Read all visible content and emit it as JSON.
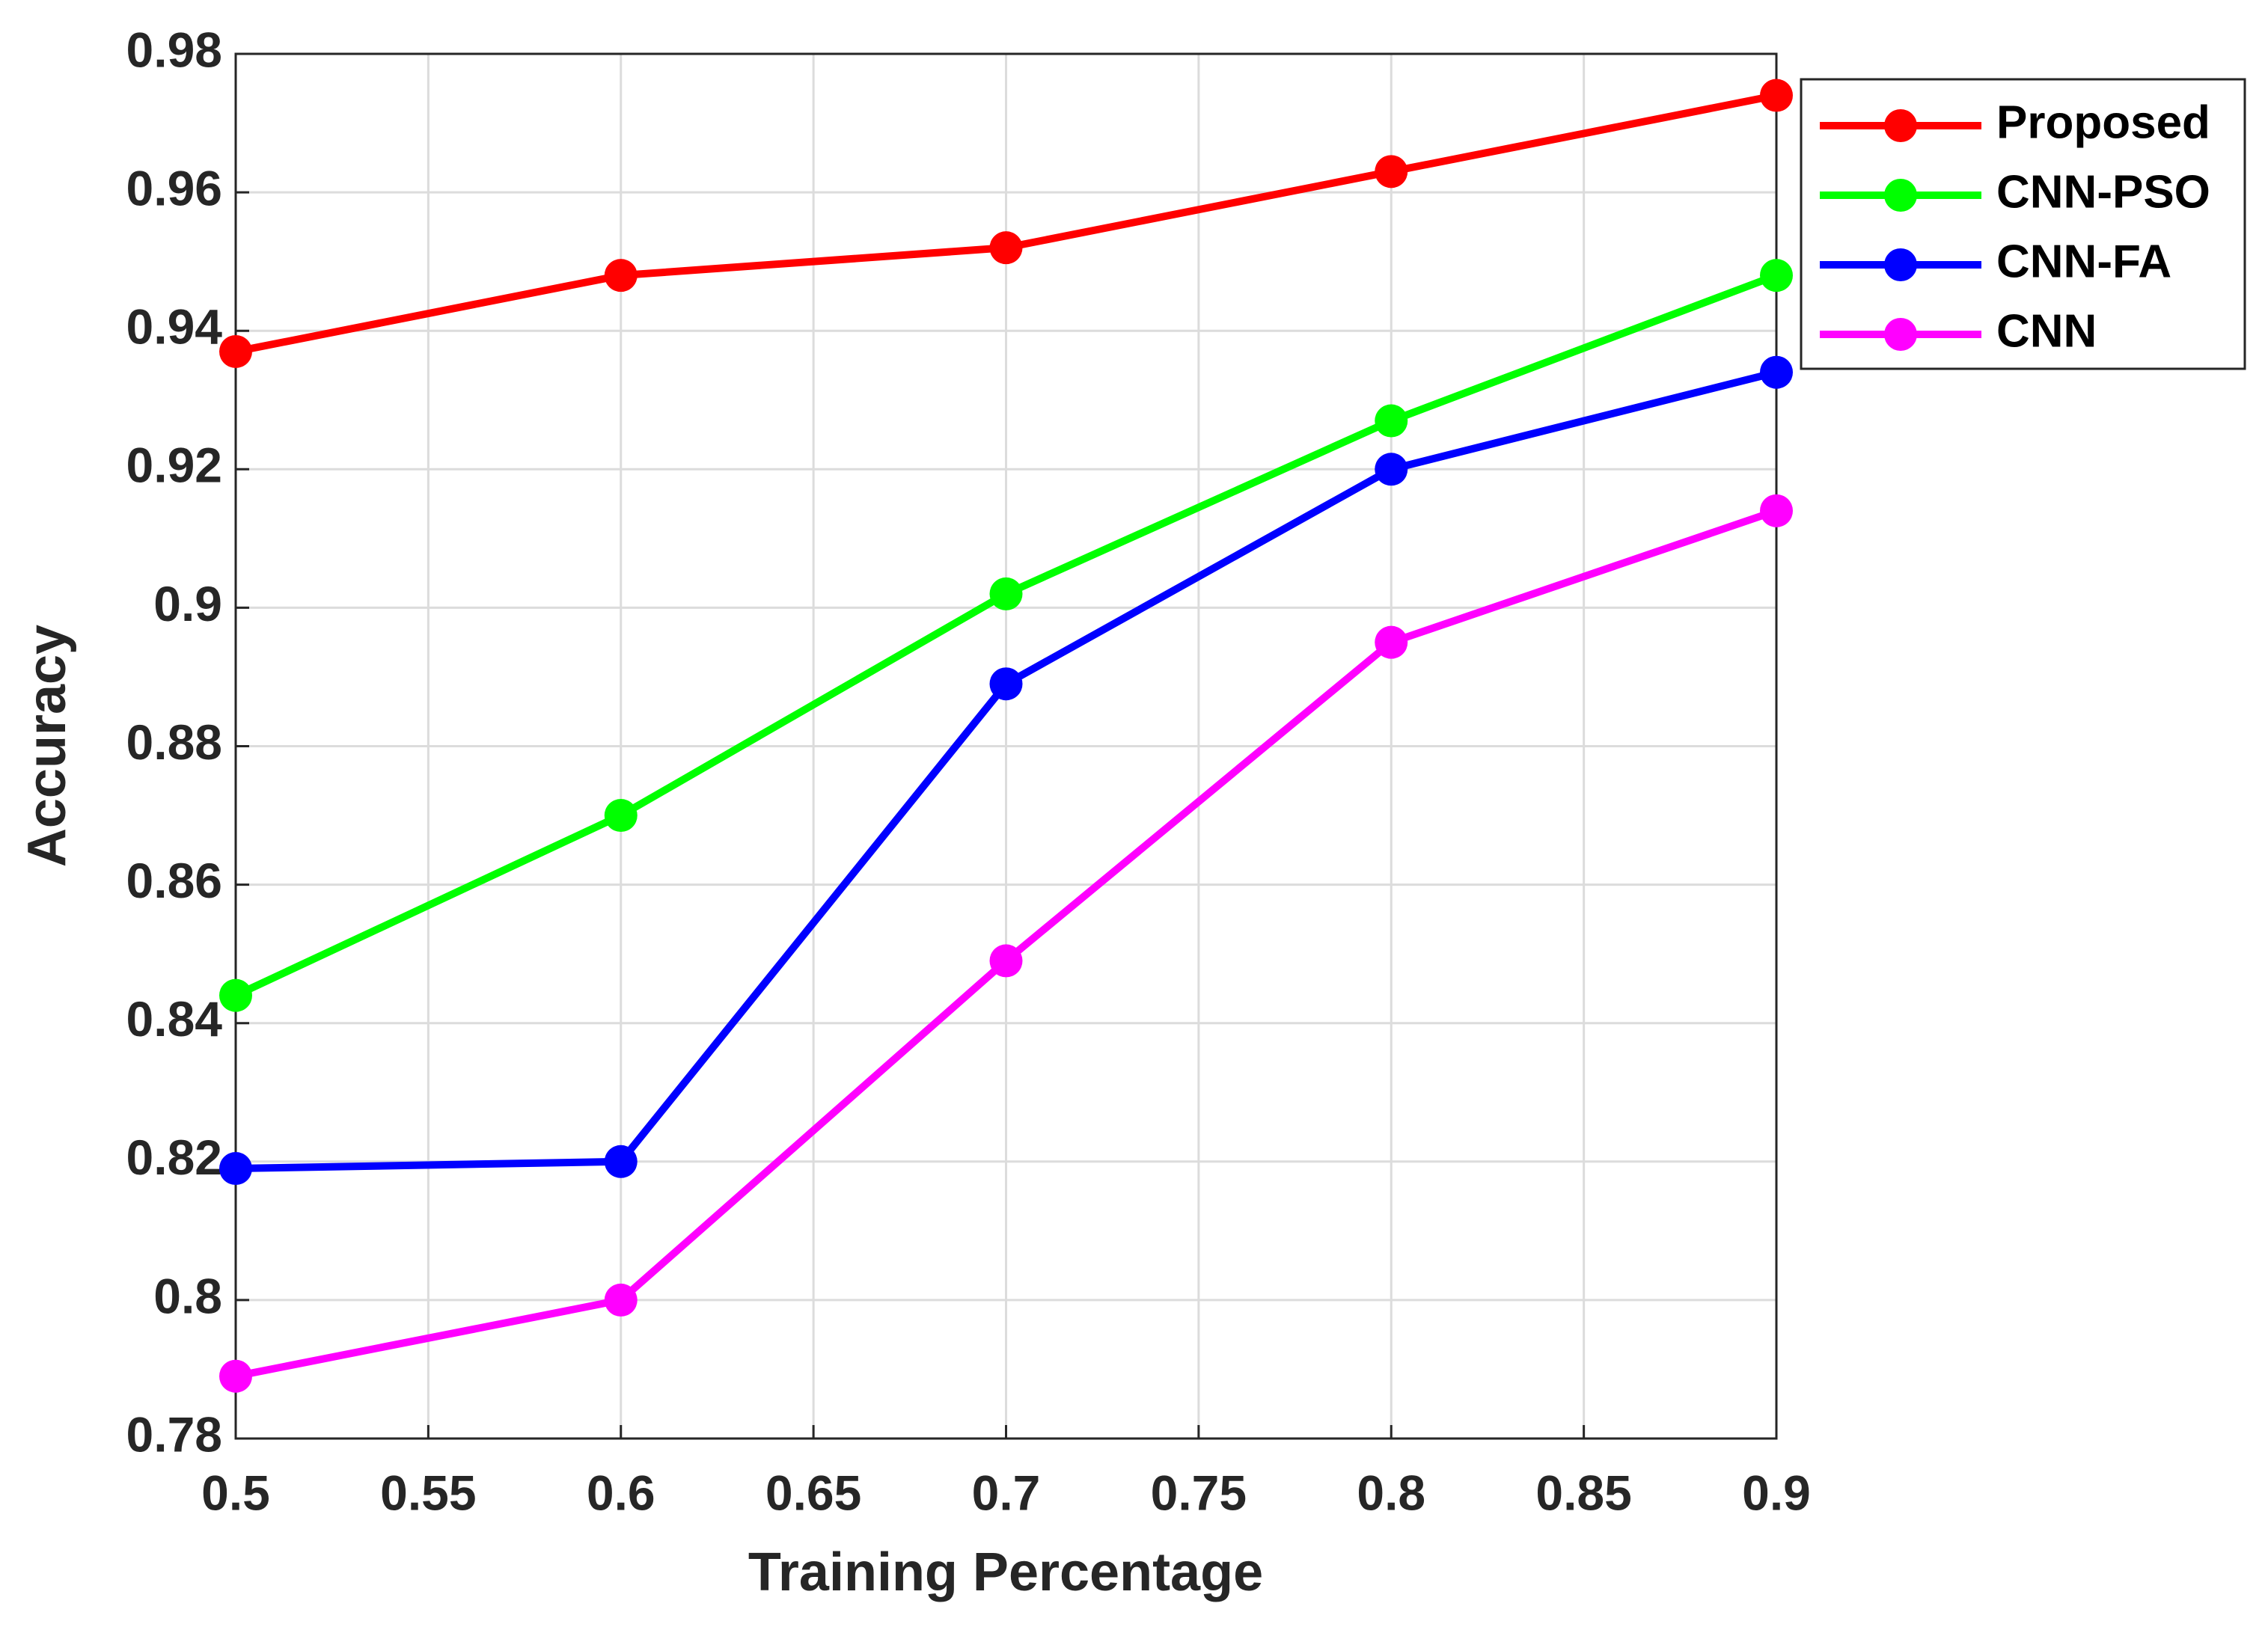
{
  "chart_data": {
    "type": "line",
    "x_label": "Training Percentage",
    "y_label": "Accuracy",
    "x": [
      0.5,
      0.6,
      0.7,
      0.8,
      0.9
    ],
    "xlim": [
      0.5,
      0.9
    ],
    "xticks": [
      0.5,
      0.55,
      0.6,
      0.65,
      0.7,
      0.75,
      0.8,
      0.85,
      0.9
    ],
    "ylim": [
      0.78,
      0.98
    ],
    "yticks": [
      0.78,
      0.8,
      0.82,
      0.84,
      0.86,
      0.88,
      0.9,
      0.92,
      0.94,
      0.96,
      0.98
    ],
    "grid": true,
    "legend": "outside-upper-right",
    "series": [
      {
        "name": "Proposed",
        "color": "#ff0000",
        "values": [
          0.937,
          0.948,
          0.952,
          0.963,
          0.974
        ]
      },
      {
        "name": "CNN-PSO",
        "color": "#00ff00",
        "values": [
          0.844,
          0.87,
          0.902,
          0.927,
          0.948
        ]
      },
      {
        "name": "CNN-FA",
        "color": "#0000ff",
        "values": [
          0.819,
          0.82,
          0.889,
          0.92,
          0.934
        ]
      },
      {
        "name": "CNN",
        "color": "#ff00ff",
        "values": [
          0.789,
          0.8,
          0.849,
          0.895,
          0.914
        ]
      }
    ]
  }
}
